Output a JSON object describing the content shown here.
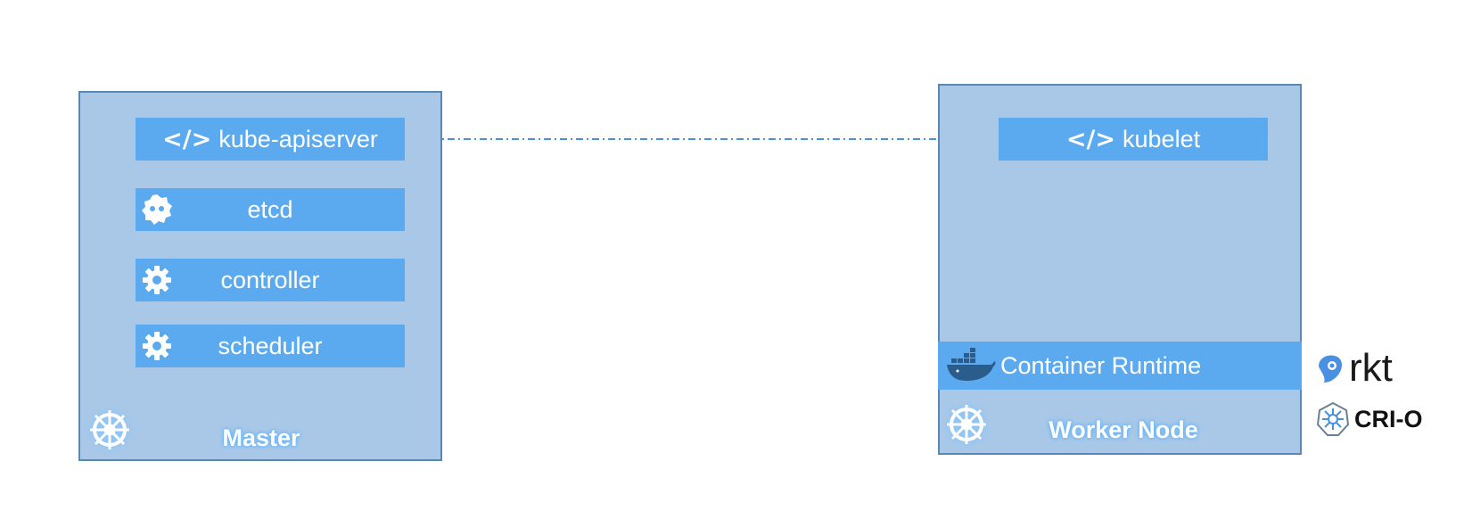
{
  "master": {
    "title": "Master",
    "components": {
      "apiserver": "kube-apiserver",
      "etcd": "etcd",
      "controller": "controller",
      "scheduler": "scheduler"
    },
    "icons": [
      "code-icon",
      "etcd-icon",
      "gear-icon",
      "gear-icon",
      "kubernetes-wheel-icon"
    ]
  },
  "worker": {
    "title": "Worker Node",
    "components": {
      "kubelet": "kubelet",
      "runtime": "Container Runtime"
    },
    "icons": [
      "code-icon",
      "docker-whale-icon",
      "kubernetes-wheel-icon"
    ]
  },
  "alternatives": {
    "rkt": "rkt",
    "crio": "CRI-O"
  },
  "colors": {
    "node_fill": "#a9c8e8",
    "node_border": "#5b87b5",
    "component_fill": "#5baaf0",
    "connector": "#4a90e2"
  }
}
